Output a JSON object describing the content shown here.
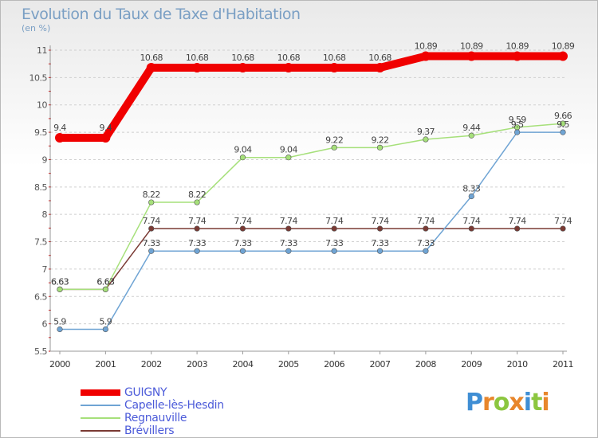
{
  "title": "Evolution du Taux de Taxe d'Habitation",
  "subtitle": "(en %)",
  "brand": {
    "letters": [
      "P",
      "r",
      "o",
      "x",
      "i",
      "t",
      "i"
    ],
    "colors": [
      "#3f8ed4",
      "#e8862b",
      "#8cc63f",
      "#e8862b",
      "#3f8ed4",
      "#8cc63f",
      "#e8862b"
    ]
  },
  "chart_data": {
    "type": "line",
    "x": [
      "2000",
      "2001",
      "2002",
      "2003",
      "2004",
      "2005",
      "2006",
      "2007",
      "2008",
      "2009",
      "2010",
      "2011"
    ],
    "ylim": [
      5.5,
      11
    ],
    "yticks": [
      "5.5",
      "6",
      "6.5",
      "7",
      "7.5",
      "8",
      "8.5",
      "9",
      "9.5",
      "10",
      "10.5",
      "11"
    ],
    "grid": "horizontal dashed",
    "legend": "bottom-left",
    "series": [
      {
        "name": "GUIGNY",
        "color": "#f00000",
        "values": [
          9.4,
          9.4,
          10.68,
          10.68,
          10.68,
          10.68,
          10.68,
          10.68,
          10.89,
          10.89,
          10.89,
          10.89
        ],
        "labels": [
          "9.4",
          "9.4",
          "10.68",
          "10.68",
          "10.68",
          "10.68",
          "10.68",
          "10.68",
          "10.89",
          "10.89",
          "10.89",
          "10.89"
        ]
      },
      {
        "name": "Capelle-lès-Hesdin",
        "color": "#6fa4d4",
        "values": [
          5.9,
          5.9,
          7.33,
          7.33,
          7.33,
          7.33,
          7.33,
          7.33,
          7.33,
          8.33,
          9.5,
          9.5
        ],
        "labels": [
          "5.9",
          "5.9",
          "7.33",
          "7.33",
          "7.33",
          "7.33",
          "7.33",
          "7.33",
          "7.33",
          "8.33",
          "9.5",
          "9.5"
        ]
      },
      {
        "name": "Regnauville",
        "color": "#a6e07a",
        "values": [
          6.63,
          6.63,
          8.22,
          8.22,
          9.04,
          9.04,
          9.22,
          9.22,
          9.37,
          9.44,
          9.59,
          9.66
        ],
        "labels": [
          "6.63",
          "6.63",
          "8.22",
          "8.22",
          "9.04",
          "9.04",
          "9.22",
          "9.22",
          "9.37",
          "9.44",
          "9.59",
          "9.66"
        ]
      },
      {
        "name": "Brévillers",
        "color": "#7a3a34",
        "values": [
          6.63,
          6.63,
          7.74,
          7.74,
          7.74,
          7.74,
          7.74,
          7.74,
          7.74,
          7.74,
          7.74,
          7.74
        ],
        "labels": [
          "6.63",
          "6.63",
          "7.74",
          "7.74",
          "7.74",
          "7.74",
          "7.74",
          "7.74",
          "7.74",
          "7.74",
          "7.74",
          "7.74"
        ]
      }
    ]
  }
}
